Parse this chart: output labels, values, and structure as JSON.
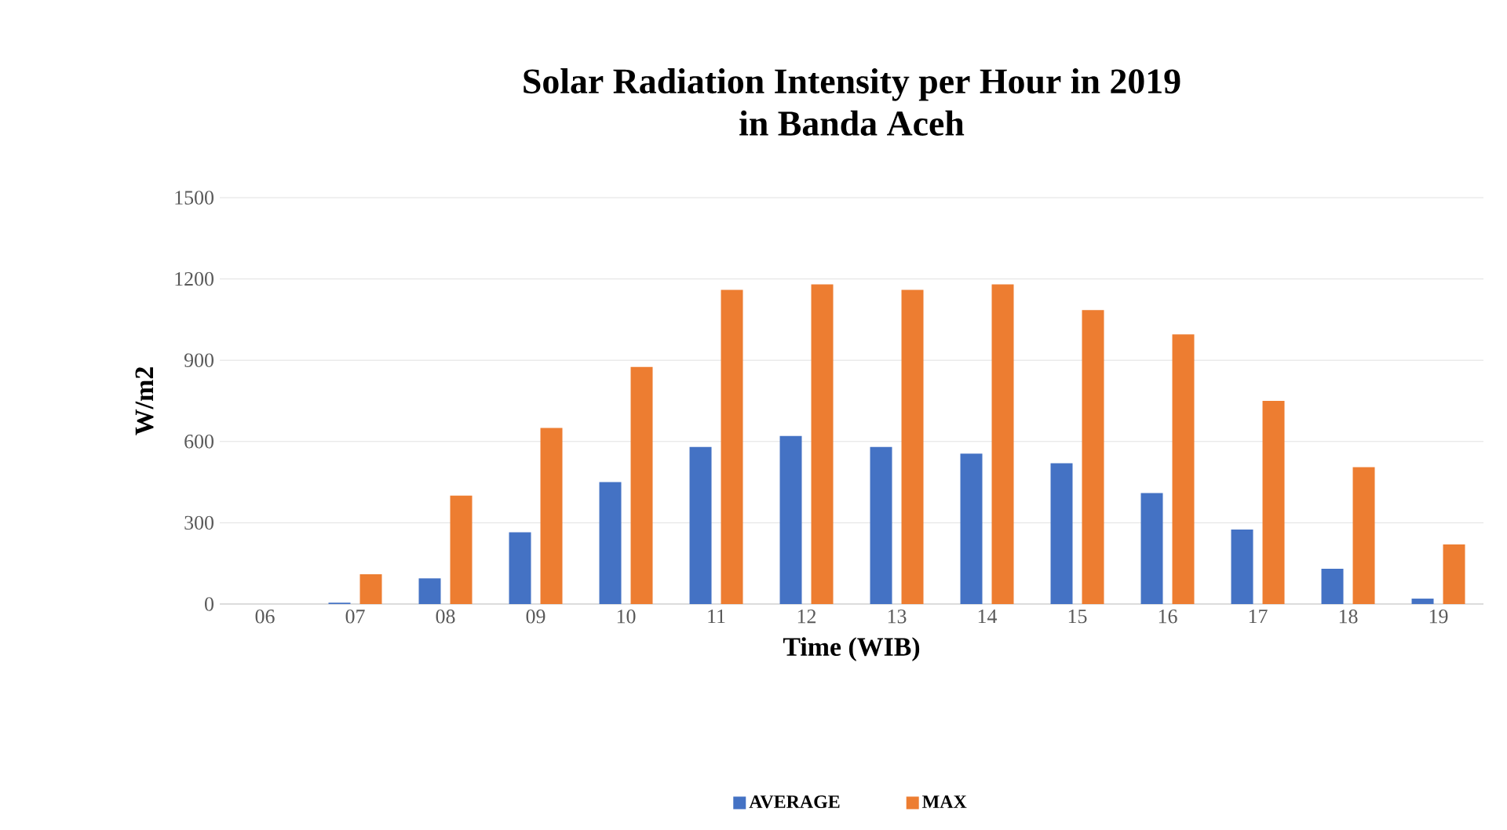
{
  "chart_data": {
    "type": "bar",
    "title": "Solar Radiation Intensity per Hour in 2019\nin Banda Aceh",
    "xlabel": "Time (WIB)",
    "ylabel": "W/m2",
    "categories": [
      "06",
      "07",
      "08",
      "09",
      "10",
      "11",
      "12",
      "13",
      "14",
      "15",
      "16",
      "17",
      "18",
      "19"
    ],
    "series": [
      {
        "name": "AVERAGE",
        "color": "#4472c4",
        "values": [
          0,
          5,
          95,
          265,
          450,
          580,
          620,
          580,
          555,
          520,
          410,
          275,
          130,
          20
        ]
      },
      {
        "name": "MAX",
        "color": "#ed7d31",
        "values": [
          0,
          110,
          400,
          650,
          875,
          1160,
          1180,
          1160,
          1180,
          1085,
          995,
          750,
          505,
          220
        ]
      }
    ],
    "ylim": [
      0,
      1500
    ],
    "yticks": [
      0,
      300,
      600,
      900,
      1200,
      1500
    ],
    "grid": "y",
    "legend": "bottom"
  }
}
